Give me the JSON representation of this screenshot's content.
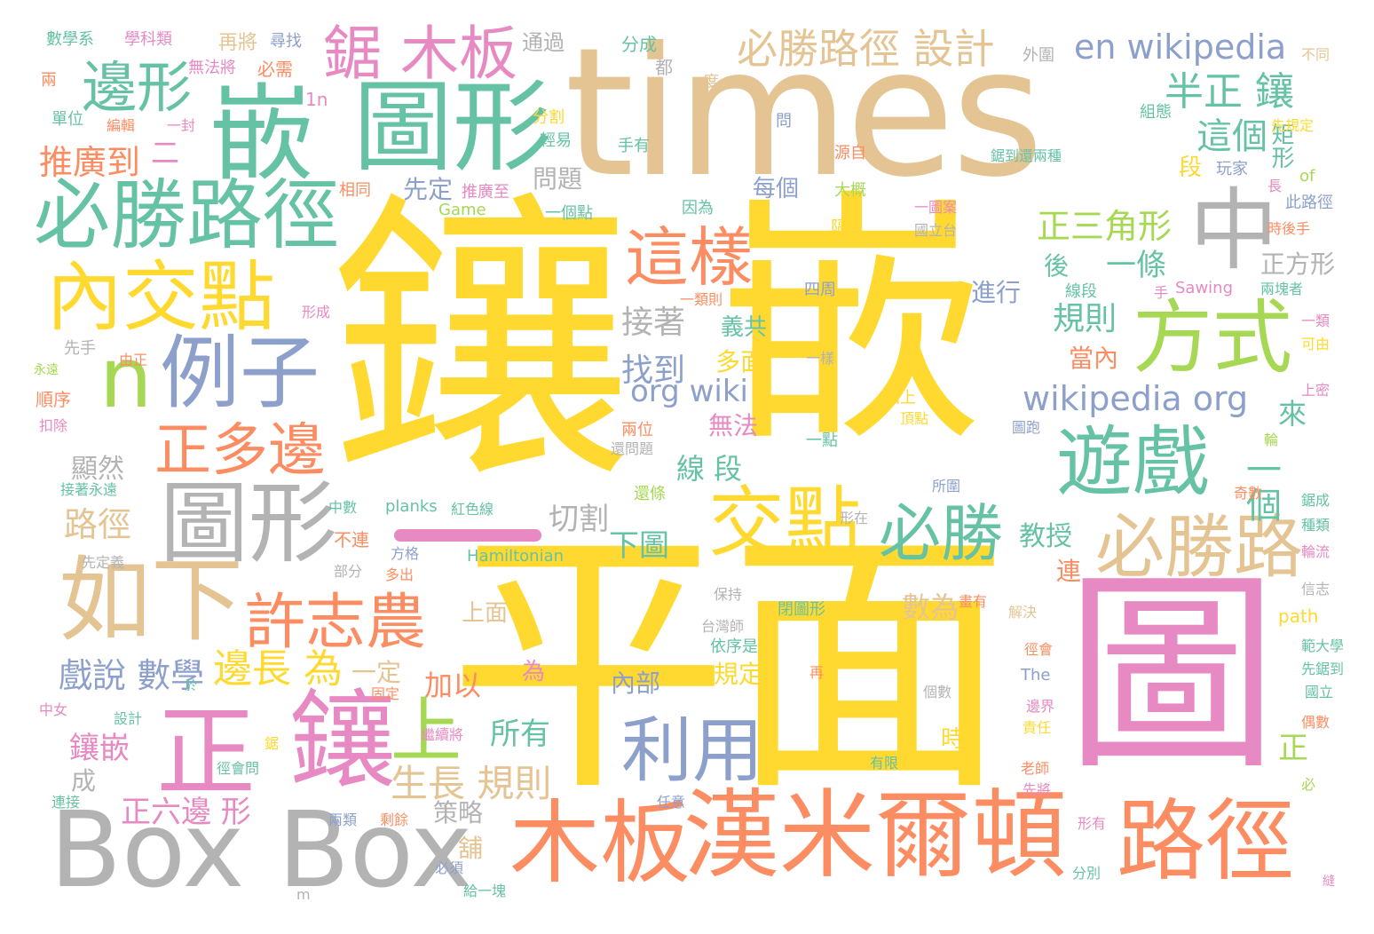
{
  "palette": {
    "yellow": "#FFD92F",
    "tan": "#E5C494",
    "green": "#66C2A5",
    "orange": "#FC8D62",
    "blue": "#8DA0CB",
    "pink": "#E78AC3",
    "lime": "#A6D854",
    "gray": "#B3B3B3"
  },
  "words": [
    {
      "text": "鑲",
      "color": "yellow"
    },
    {
      "text": "嵌",
      "color": "yellow"
    },
    {
      "text": "平面",
      "color": "yellow"
    },
    {
      "text": "圖",
      "color": "pink"
    },
    {
      "text": "times",
      "color": "tan"
    },
    {
      "text": "嵌",
      "color": "green"
    },
    {
      "text": "圖形",
      "color": "green"
    },
    {
      "text": "必勝路徑",
      "color": "green"
    },
    {
      "text": "邊形",
      "color": "green"
    },
    {
      "text": "內交點",
      "color": "yellow"
    },
    {
      "text": "n",
      "color": "lime"
    },
    {
      "text": "例子",
      "color": "blue"
    },
    {
      "text": "正多邊",
      "color": "orange"
    },
    {
      "text": "圖形",
      "color": "gray"
    },
    {
      "text": "如下",
      "color": "tan"
    },
    {
      "text": "正",
      "color": "pink"
    },
    {
      "text": "鑲",
      "color": "pink"
    },
    {
      "text": "上",
      "color": "lime"
    },
    {
      "text": "Box Box",
      "color": "gray"
    },
    {
      "text": "木板",
      "color": "orange"
    },
    {
      "text": "漢米爾頓",
      "color": "orange"
    },
    {
      "text": "路徑",
      "color": "orange"
    },
    {
      "text": "中",
      "color": "gray"
    },
    {
      "text": "這樣",
      "color": "orange"
    },
    {
      "text": "方式",
      "color": "lime"
    },
    {
      "text": "遊戲",
      "color": "green"
    },
    {
      "text": "交點",
      "color": "yellow"
    },
    {
      "text": "必勝",
      "color": "green"
    },
    {
      "text": "必勝路",
      "color": "tan"
    },
    {
      "text": "許志農",
      "color": "orange"
    },
    {
      "text": "利用",
      "color": "blue"
    },
    {
      "text": "鋸 木板",
      "color": "pink"
    },
    {
      "text": "必勝路徑 設計",
      "color": "tan"
    },
    {
      "text": "en wikipedia",
      "color": "blue"
    },
    {
      "text": "半正 鑲",
      "color": "green"
    },
    {
      "text": "這個",
      "color": "green"
    },
    {
      "text": "推廣到",
      "color": "orange"
    },
    {
      "text": "正三角形",
      "color": "lime"
    },
    {
      "text": "一條",
      "color": "green"
    },
    {
      "text": "wikipedia org",
      "color": "blue"
    },
    {
      "text": "org wiki",
      "color": "blue"
    },
    {
      "text": "規則",
      "color": "green"
    },
    {
      "text": "接著",
      "color": "gray"
    },
    {
      "text": "找到",
      "color": "blue"
    },
    {
      "text": "生長 規則",
      "color": "tan"
    },
    {
      "text": "邊長 為",
      "color": "yellow"
    },
    {
      "text": "戲說 數學",
      "color": "blue"
    },
    {
      "text": "鑲嵌",
      "color": "pink"
    },
    {
      "text": "正六邊 形",
      "color": "pink"
    },
    {
      "text": "所有",
      "color": "green"
    },
    {
      "text": "一個",
      "color": "green"
    },
    {
      "text": "顯然",
      "color": "gray"
    },
    {
      "text": "路徑",
      "color": "tan"
    },
    {
      "text": "切割",
      "color": "gray"
    },
    {
      "text": "下圖",
      "color": "green"
    },
    {
      "text": "線 段",
      "color": "green"
    },
    {
      "text": "教授",
      "color": "green"
    },
    {
      "text": "數為",
      "color": "tan"
    },
    {
      "text": "加以",
      "color": "orange"
    },
    {
      "text": "內部",
      "color": "blue"
    },
    {
      "text": "規定",
      "color": "yellow"
    },
    {
      "text": "策略",
      "color": "gray"
    },
    {
      "text": "進行",
      "color": "blue"
    },
    {
      "text": "正方形",
      "color": "gray"
    },
    {
      "text": "矩形",
      "color": "green"
    },
    {
      "text": "每個",
      "color": "blue"
    },
    {
      "text": "先定",
      "color": "blue"
    },
    {
      "text": "問題",
      "color": "gray"
    },
    {
      "text": "來",
      "color": "green"
    },
    {
      "text": "無法",
      "color": "pink"
    },
    {
      "text": "義共",
      "color": "green"
    },
    {
      "text": "多面",
      "color": "yellow"
    },
    {
      "text": "二",
      "color": "pink"
    },
    {
      "text": "段",
      "color": "yellow"
    },
    {
      "text": "後",
      "color": "green"
    },
    {
      "text": "當內",
      "color": "orange"
    },
    {
      "text": "連",
      "color": "orange"
    },
    {
      "text": "正",
      "color": "lime"
    },
    {
      "text": "上面",
      "color": "tan"
    },
    {
      "text": "一定",
      "color": "tan"
    },
    {
      "text": "為",
      "color": "pink"
    },
    {
      "text": "時",
      "color": "yellow"
    },
    {
      "text": "舖",
      "color": "tan"
    },
    {
      "text": "成",
      "color": "gray"
    },
    {
      "text": "數學系",
      "color": "green"
    },
    {
      "text": "學科類",
      "color": "pink"
    },
    {
      "text": "再將",
      "color": "tan"
    },
    {
      "text": "尋找",
      "color": "blue"
    },
    {
      "text": "通過",
      "color": "gray"
    },
    {
      "text": "分成",
      "color": "green"
    },
    {
      "text": "都",
      "color": "gray"
    },
    {
      "text": "外圍",
      "color": "gray"
    },
    {
      "text": "不同",
      "color": "tan"
    },
    {
      "text": "兩",
      "color": "orange"
    },
    {
      "text": "無法將",
      "color": "pink"
    },
    {
      "text": "必需",
      "color": "orange"
    },
    {
      "text": "1n",
      "color": "pink"
    },
    {
      "text": "度",
      "color": "tan"
    },
    {
      "text": "單位",
      "color": "green"
    },
    {
      "text": "編輯",
      "color": "orange"
    },
    {
      "text": "一封",
      "color": "pink"
    },
    {
      "text": "分割",
      "color": "yellow"
    },
    {
      "text": "輕易",
      "color": "green"
    },
    {
      "text": "問",
      "color": "blue"
    },
    {
      "text": "組態",
      "color": "green"
    },
    {
      "text": "先規定",
      "color": "yellow"
    },
    {
      "text": "手有",
      "color": "green"
    },
    {
      "text": "源自",
      "color": "orange"
    },
    {
      "text": "鋸到還兩種",
      "color": "green"
    },
    {
      "text": "玩家",
      "color": "blue"
    },
    {
      "text": "of",
      "color": "lime"
    },
    {
      "text": "長",
      "color": "pink"
    },
    {
      "text": "相同",
      "color": "orange"
    },
    {
      "text": "推廣至",
      "color": "pink"
    },
    {
      "text": "大概",
      "color": "lime"
    },
    {
      "text": "Game",
      "color": "lime"
    },
    {
      "text": "一個點",
      "color": "green"
    },
    {
      "text": "因為",
      "color": "green"
    },
    {
      "text": "一圖案",
      "color": "pink"
    },
    {
      "text": "此路徑",
      "color": "blue"
    },
    {
      "text": "隔",
      "color": "yellow"
    },
    {
      "text": "國立台",
      "color": "gray"
    },
    {
      "text": "時後手",
      "color": "orange"
    },
    {
      "text": "線段",
      "color": "green"
    },
    {
      "text": "手",
      "color": "pink"
    },
    {
      "text": "Sawing",
      "color": "pink"
    },
    {
      "text": "兩塊者",
      "color": "green"
    },
    {
      "text": "一類則",
      "color": "orange"
    },
    {
      "text": "四周",
      "color": "blue"
    },
    {
      "text": "形成",
      "color": "pink"
    },
    {
      "text": "先手",
      "color": "gray"
    },
    {
      "text": "由正",
      "color": "orange"
    },
    {
      "text": "永遠",
      "color": "lime"
    },
    {
      "text": "一類",
      "color": "pink"
    },
    {
      "text": "可由",
      "color": "yellow"
    },
    {
      "text": "順序",
      "color": "orange"
    },
    {
      "text": "一樣",
      "color": "gray"
    },
    {
      "text": "加上",
      "color": "yellow"
    },
    {
      "text": "頂點",
      "color": "yellow"
    },
    {
      "text": "上密",
      "color": "pink"
    },
    {
      "text": "扣除",
      "color": "pink"
    },
    {
      "text": "兩位",
      "color": "orange"
    },
    {
      "text": "還問題",
      "color": "gray"
    },
    {
      "text": "一點",
      "color": "green"
    },
    {
      "text": "圖跑",
      "color": "blue"
    },
    {
      "text": "輪",
      "color": "lime"
    },
    {
      "text": "接著永遠",
      "color": "green"
    },
    {
      "text": "所圍",
      "color": "blue"
    },
    {
      "text": "還條",
      "color": "lime"
    },
    {
      "text": "奇數",
      "color": "orange"
    },
    {
      "text": "鋸成",
      "color": "green"
    },
    {
      "text": "中數",
      "color": "green"
    },
    {
      "text": "planks",
      "color": "green"
    },
    {
      "text": "紅色線",
      "color": "green"
    },
    {
      "text": "形在",
      "color": "gray"
    },
    {
      "text": "種類",
      "color": "green"
    },
    {
      "text": "輪流",
      "color": "pink"
    },
    {
      "text": "先定義",
      "color": "gray"
    },
    {
      "text": "方格",
      "color": "blue"
    },
    {
      "text": "Hamiltonian",
      "color": "green"
    },
    {
      "text": "不連",
      "color": "orange"
    },
    {
      "text": "部分",
      "color": "gray"
    },
    {
      "text": "多出",
      "color": "orange"
    },
    {
      "text": "信志",
      "color": "gray"
    },
    {
      "text": "保持",
      "color": "gray"
    },
    {
      "text": "閉圖形",
      "color": "green"
    },
    {
      "text": "畫有",
      "color": "orange"
    },
    {
      "text": "解決",
      "color": "tan"
    },
    {
      "text": "path",
      "color": "yellow"
    },
    {
      "text": "台灣師",
      "color": "gray"
    },
    {
      "text": "依序是",
      "color": "green"
    },
    {
      "text": "範大學",
      "color": "green"
    },
    {
      "text": "徑會",
      "color": "orange"
    },
    {
      "text": "先鋸到",
      "color": "green"
    },
    {
      "text": "中女",
      "color": "pink"
    },
    {
      "text": "於",
      "color": "green"
    },
    {
      "text": "固定",
      "color": "orange"
    },
    {
      "text": "再",
      "color": "orange"
    },
    {
      "text": "The",
      "color": "blue"
    },
    {
      "text": "國立",
      "color": "green"
    },
    {
      "text": "設計",
      "color": "green"
    },
    {
      "text": "鋸",
      "color": "yellow"
    },
    {
      "text": "繼續將",
      "color": "pink"
    },
    {
      "text": "個數",
      "color": "gray"
    },
    {
      "text": "邊界",
      "color": "pink"
    },
    {
      "text": "責任",
      "color": "yellow"
    },
    {
      "text": "偶數",
      "color": "orange"
    },
    {
      "text": "徑會問",
      "color": "green"
    },
    {
      "text": "有限",
      "color": "green"
    },
    {
      "text": "老師",
      "color": "orange"
    },
    {
      "text": "先將",
      "color": "pink"
    },
    {
      "text": "必",
      "color": "lime"
    },
    {
      "text": "連接",
      "color": "green"
    },
    {
      "text": "任意",
      "color": "blue"
    },
    {
      "text": "兩類",
      "color": "blue"
    },
    {
      "text": "剩餘",
      "color": "orange"
    },
    {
      "text": "形有",
      "color": "pink"
    },
    {
      "text": "必須",
      "color": "blue"
    },
    {
      "text": "分別",
      "color": "green"
    },
    {
      "text": "給一塊",
      "color": "green"
    },
    {
      "text": "m",
      "color": "gray"
    },
    {
      "text": "縫",
      "color": "pink"
    }
  ]
}
